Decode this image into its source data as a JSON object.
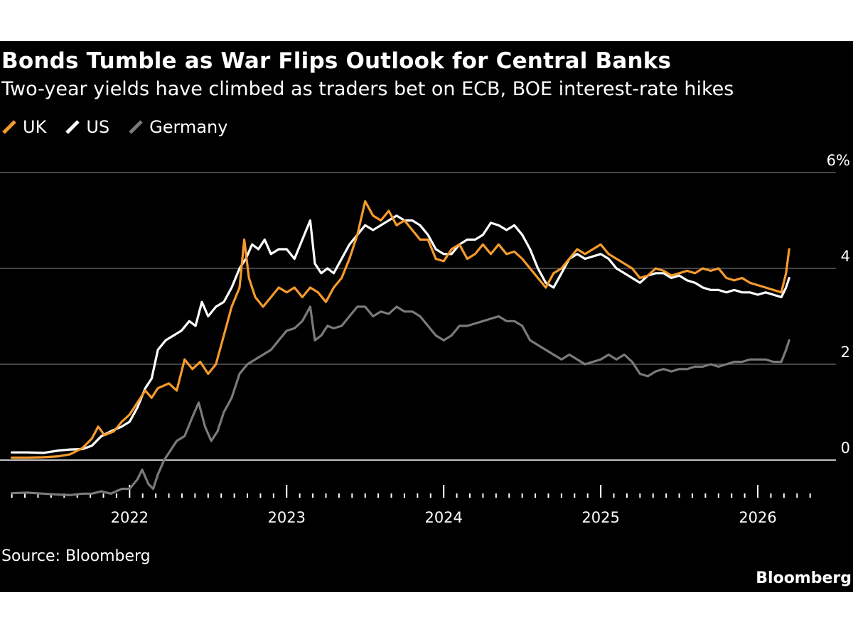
{
  "chart_data": {
    "type": "line",
    "title": "Bonds Tumble as War Flips Outlook for Central Banks",
    "subtitle": "Two-year yields have climbed as traders bet on ECB, BOE interest-rate hikes",
    "source": "Source: Bloomberg",
    "brand": "Bloomberg",
    "ylabel": "",
    "xlabel": "",
    "ylim": [
      -0.9,
      6
    ],
    "xlim": [
      2021.22,
      2026.38
    ],
    "y_ticks": [
      {
        "value": 6,
        "label": "6%"
      },
      {
        "value": 4,
        "label": "4"
      },
      {
        "value": 2,
        "label": "2"
      },
      {
        "value": 0,
        "label": "0"
      }
    ],
    "x_ticks": [
      {
        "value": 2022,
        "label": "2022"
      },
      {
        "value": 2023,
        "label": "2023"
      },
      {
        "value": 2024,
        "label": "2024"
      },
      {
        "value": 2025,
        "label": "2025"
      },
      {
        "value": 2026,
        "label": "2026"
      }
    ],
    "grid": true,
    "legend": "top-left",
    "series": [
      {
        "name": "UK",
        "color": "#f59a2e",
        "points": [
          [
            2021.25,
            0.05
          ],
          [
            2021.35,
            0.05
          ],
          [
            2021.45,
            0.06
          ],
          [
            2021.55,
            0.08
          ],
          [
            2021.62,
            0.12
          ],
          [
            2021.7,
            0.25
          ],
          [
            2021.76,
            0.45
          ],
          [
            2021.8,
            0.7
          ],
          [
            2021.84,
            0.52
          ],
          [
            2021.9,
            0.6
          ],
          [
            2021.95,
            0.8
          ],
          [
            2022.0,
            0.95
          ],
          [
            2022.05,
            1.2
          ],
          [
            2022.1,
            1.45
          ],
          [
            2022.14,
            1.3
          ],
          [
            2022.18,
            1.5
          ],
          [
            2022.25,
            1.6
          ],
          [
            2022.3,
            1.45
          ],
          [
            2022.35,
            2.1
          ],
          [
            2022.4,
            1.9
          ],
          [
            2022.45,
            2.05
          ],
          [
            2022.5,
            1.8
          ],
          [
            2022.55,
            2.0
          ],
          [
            2022.6,
            2.6
          ],
          [
            2022.65,
            3.2
          ],
          [
            2022.7,
            3.6
          ],
          [
            2022.73,
            4.6
          ],
          [
            2022.76,
            3.8
          ],
          [
            2022.8,
            3.4
          ],
          [
            2022.85,
            3.2
          ],
          [
            2022.9,
            3.4
          ],
          [
            2022.95,
            3.6
          ],
          [
            2023.0,
            3.5
          ],
          [
            2023.05,
            3.6
          ],
          [
            2023.1,
            3.4
          ],
          [
            2023.15,
            3.6
          ],
          [
            2023.2,
            3.5
          ],
          [
            2023.25,
            3.3
          ],
          [
            2023.3,
            3.6
          ],
          [
            2023.35,
            3.8
          ],
          [
            2023.4,
            4.2
          ],
          [
            2023.45,
            4.7
          ],
          [
            2023.5,
            5.4
          ],
          [
            2023.55,
            5.1
          ],
          [
            2023.6,
            5.0
          ],
          [
            2023.65,
            5.2
          ],
          [
            2023.7,
            4.9
          ],
          [
            2023.75,
            5.0
          ],
          [
            2023.8,
            4.8
          ],
          [
            2023.85,
            4.6
          ],
          [
            2023.9,
            4.6
          ],
          [
            2023.95,
            4.2
          ],
          [
            2024.0,
            4.15
          ],
          [
            2024.05,
            4.4
          ],
          [
            2024.1,
            4.5
          ],
          [
            2024.15,
            4.2
          ],
          [
            2024.2,
            4.3
          ],
          [
            2024.25,
            4.5
          ],
          [
            2024.3,
            4.3
          ],
          [
            2024.35,
            4.5
          ],
          [
            2024.4,
            4.3
          ],
          [
            2024.45,
            4.35
          ],
          [
            2024.5,
            4.2
          ],
          [
            2024.55,
            4.0
          ],
          [
            2024.6,
            3.8
          ],
          [
            2024.65,
            3.6
          ],
          [
            2024.7,
            3.9
          ],
          [
            2024.75,
            4.0
          ],
          [
            2024.8,
            4.2
          ],
          [
            2024.85,
            4.4
          ],
          [
            2024.9,
            4.3
          ],
          [
            2024.95,
            4.4
          ],
          [
            2025.0,
            4.5
          ],
          [
            2025.05,
            4.3
          ],
          [
            2025.1,
            4.2
          ],
          [
            2025.15,
            4.1
          ],
          [
            2025.2,
            4.0
          ],
          [
            2025.25,
            3.8
          ],
          [
            2025.3,
            3.85
          ],
          [
            2025.35,
            4.0
          ],
          [
            2025.4,
            3.95
          ],
          [
            2025.45,
            3.85
          ],
          [
            2025.5,
            3.9
          ],
          [
            2025.55,
            3.95
          ],
          [
            2025.6,
            3.9
          ],
          [
            2025.65,
            4.0
          ],
          [
            2025.7,
            3.95
          ],
          [
            2025.75,
            4.0
          ],
          [
            2025.8,
            3.8
          ],
          [
            2025.85,
            3.75
          ],
          [
            2025.9,
            3.8
          ],
          [
            2025.95,
            3.7
          ],
          [
            2026.0,
            3.65
          ],
          [
            2026.05,
            3.6
          ],
          [
            2026.1,
            3.55
          ],
          [
            2026.15,
            3.5
          ],
          [
            2026.18,
            3.9
          ],
          [
            2026.2,
            4.4
          ]
        ]
      },
      {
        "name": "US",
        "color": "#ffffff",
        "points": [
          [
            2021.25,
            0.16
          ],
          [
            2021.35,
            0.16
          ],
          [
            2021.45,
            0.15
          ],
          [
            2021.55,
            0.2
          ],
          [
            2021.62,
            0.22
          ],
          [
            2021.7,
            0.23
          ],
          [
            2021.76,
            0.3
          ],
          [
            2021.82,
            0.5
          ],
          [
            2021.88,
            0.6
          ],
          [
            2021.95,
            0.7
          ],
          [
            2022.0,
            0.8
          ],
          [
            2022.05,
            1.1
          ],
          [
            2022.1,
            1.5
          ],
          [
            2022.14,
            1.7
          ],
          [
            2022.18,
            2.3
          ],
          [
            2022.23,
            2.5
          ],
          [
            2022.28,
            2.6
          ],
          [
            2022.33,
            2.7
          ],
          [
            2022.38,
            2.9
          ],
          [
            2022.42,
            2.8
          ],
          [
            2022.46,
            3.3
          ],
          [
            2022.5,
            3.0
          ],
          [
            2022.55,
            3.2
          ],
          [
            2022.6,
            3.3
          ],
          [
            2022.65,
            3.6
          ],
          [
            2022.7,
            4.0
          ],
          [
            2022.74,
            4.2
          ],
          [
            2022.78,
            4.5
          ],
          [
            2022.82,
            4.4
          ],
          [
            2022.86,
            4.6
          ],
          [
            2022.9,
            4.3
          ],
          [
            2022.95,
            4.4
          ],
          [
            2023.0,
            4.4
          ],
          [
            2023.05,
            4.2
          ],
          [
            2023.1,
            4.6
          ],
          [
            2023.15,
            5.0
          ],
          [
            2023.18,
            4.1
          ],
          [
            2023.22,
            3.9
          ],
          [
            2023.26,
            4.0
          ],
          [
            2023.3,
            3.9
          ],
          [
            2023.35,
            4.2
          ],
          [
            2023.4,
            4.5
          ],
          [
            2023.45,
            4.7
          ],
          [
            2023.5,
            4.9
          ],
          [
            2023.55,
            4.8
          ],
          [
            2023.6,
            4.9
          ],
          [
            2023.65,
            5.0
          ],
          [
            2023.7,
            5.1
          ],
          [
            2023.75,
            5.0
          ],
          [
            2023.8,
            5.0
          ],
          [
            2023.85,
            4.9
          ],
          [
            2023.9,
            4.7
          ],
          [
            2023.95,
            4.4
          ],
          [
            2024.0,
            4.3
          ],
          [
            2024.05,
            4.3
          ],
          [
            2024.1,
            4.5
          ],
          [
            2024.15,
            4.6
          ],
          [
            2024.2,
            4.6
          ],
          [
            2024.25,
            4.7
          ],
          [
            2024.3,
            4.95
          ],
          [
            2024.35,
            4.9
          ],
          [
            2024.4,
            4.8
          ],
          [
            2024.45,
            4.9
          ],
          [
            2024.5,
            4.7
          ],
          [
            2024.55,
            4.4
          ],
          [
            2024.6,
            4.0
          ],
          [
            2024.65,
            3.7
          ],
          [
            2024.7,
            3.6
          ],
          [
            2024.75,
            3.9
          ],
          [
            2024.8,
            4.2
          ],
          [
            2024.85,
            4.3
          ],
          [
            2024.9,
            4.2
          ],
          [
            2024.95,
            4.25
          ],
          [
            2025.0,
            4.3
          ],
          [
            2025.05,
            4.2
          ],
          [
            2025.1,
            4.0
          ],
          [
            2025.15,
            3.9
          ],
          [
            2025.2,
            3.8
          ],
          [
            2025.25,
            3.7
          ],
          [
            2025.3,
            3.85
          ],
          [
            2025.35,
            3.9
          ],
          [
            2025.4,
            3.9
          ],
          [
            2025.45,
            3.8
          ],
          [
            2025.5,
            3.85
          ],
          [
            2025.55,
            3.75
          ],
          [
            2025.6,
            3.7
          ],
          [
            2025.65,
            3.6
          ],
          [
            2025.7,
            3.55
          ],
          [
            2025.75,
            3.55
          ],
          [
            2025.8,
            3.5
          ],
          [
            2025.85,
            3.55
          ],
          [
            2025.9,
            3.5
          ],
          [
            2025.95,
            3.5
          ],
          [
            2026.0,
            3.45
          ],
          [
            2026.05,
            3.5
          ],
          [
            2026.1,
            3.45
          ],
          [
            2026.15,
            3.4
          ],
          [
            2026.18,
            3.6
          ],
          [
            2026.2,
            3.8
          ]
        ]
      },
      {
        "name": "Germany",
        "color": "#7a7a7a",
        "points": [
          [
            2021.25,
            -0.69
          ],
          [
            2021.35,
            -0.68
          ],
          [
            2021.45,
            -0.7
          ],
          [
            2021.55,
            -0.72
          ],
          [
            2021.62,
            -0.73
          ],
          [
            2021.7,
            -0.7
          ],
          [
            2021.76,
            -0.7
          ],
          [
            2021.82,
            -0.65
          ],
          [
            2021.88,
            -0.7
          ],
          [
            2021.95,
            -0.6
          ],
          [
            2022.0,
            -0.6
          ],
          [
            2022.05,
            -0.4
          ],
          [
            2022.08,
            -0.2
          ],
          [
            2022.12,
            -0.5
          ],
          [
            2022.15,
            -0.6
          ],
          [
            2022.18,
            -0.3
          ],
          [
            2022.22,
            0.0
          ],
          [
            2022.26,
            0.2
          ],
          [
            2022.3,
            0.4
          ],
          [
            2022.35,
            0.5
          ],
          [
            2022.4,
            0.9
          ],
          [
            2022.44,
            1.2
          ],
          [
            2022.48,
            0.7
          ],
          [
            2022.52,
            0.4
          ],
          [
            2022.56,
            0.6
          ],
          [
            2022.6,
            1.0
          ],
          [
            2022.65,
            1.3
          ],
          [
            2022.7,
            1.8
          ],
          [
            2022.75,
            2.0
          ],
          [
            2022.8,
            2.1
          ],
          [
            2022.85,
            2.2
          ],
          [
            2022.9,
            2.3
          ],
          [
            2022.95,
            2.5
          ],
          [
            2023.0,
            2.7
          ],
          [
            2023.05,
            2.75
          ],
          [
            2023.1,
            2.9
          ],
          [
            2023.15,
            3.2
          ],
          [
            2023.18,
            2.5
          ],
          [
            2023.22,
            2.6
          ],
          [
            2023.26,
            2.8
          ],
          [
            2023.3,
            2.75
          ],
          [
            2023.35,
            2.8
          ],
          [
            2023.4,
            3.0
          ],
          [
            2023.45,
            3.2
          ],
          [
            2023.5,
            3.2
          ],
          [
            2023.55,
            3.0
          ],
          [
            2023.6,
            3.1
          ],
          [
            2023.65,
            3.05
          ],
          [
            2023.7,
            3.2
          ],
          [
            2023.75,
            3.1
          ],
          [
            2023.8,
            3.1
          ],
          [
            2023.85,
            3.0
          ],
          [
            2023.9,
            2.8
          ],
          [
            2023.95,
            2.6
          ],
          [
            2024.0,
            2.5
          ],
          [
            2024.05,
            2.6
          ],
          [
            2024.1,
            2.8
          ],
          [
            2024.15,
            2.8
          ],
          [
            2024.2,
            2.85
          ],
          [
            2024.25,
            2.9
          ],
          [
            2024.3,
            2.95
          ],
          [
            2024.35,
            3.0
          ],
          [
            2024.4,
            2.9
          ],
          [
            2024.45,
            2.9
          ],
          [
            2024.5,
            2.8
          ],
          [
            2024.55,
            2.5
          ],
          [
            2024.6,
            2.4
          ],
          [
            2024.65,
            2.3
          ],
          [
            2024.7,
            2.2
          ],
          [
            2024.75,
            2.1
          ],
          [
            2024.8,
            2.2
          ],
          [
            2024.85,
            2.1
          ],
          [
            2024.9,
            2.0
          ],
          [
            2024.95,
            2.05
          ],
          [
            2025.0,
            2.1
          ],
          [
            2025.05,
            2.2
          ],
          [
            2025.1,
            2.1
          ],
          [
            2025.15,
            2.2
          ],
          [
            2025.2,
            2.05
          ],
          [
            2025.25,
            1.8
          ],
          [
            2025.3,
            1.75
          ],
          [
            2025.35,
            1.85
          ],
          [
            2025.4,
            1.9
          ],
          [
            2025.45,
            1.85
          ],
          [
            2025.5,
            1.9
          ],
          [
            2025.55,
            1.9
          ],
          [
            2025.6,
            1.95
          ],
          [
            2025.65,
            1.95
          ],
          [
            2025.7,
            2.0
          ],
          [
            2025.75,
            1.95
          ],
          [
            2025.8,
            2.0
          ],
          [
            2025.85,
            2.05
          ],
          [
            2025.9,
            2.05
          ],
          [
            2025.95,
            2.1
          ],
          [
            2026.0,
            2.1
          ],
          [
            2026.05,
            2.1
          ],
          [
            2026.1,
            2.05
          ],
          [
            2026.15,
            2.05
          ],
          [
            2026.18,
            2.3
          ],
          [
            2026.2,
            2.5
          ]
        ]
      }
    ]
  }
}
